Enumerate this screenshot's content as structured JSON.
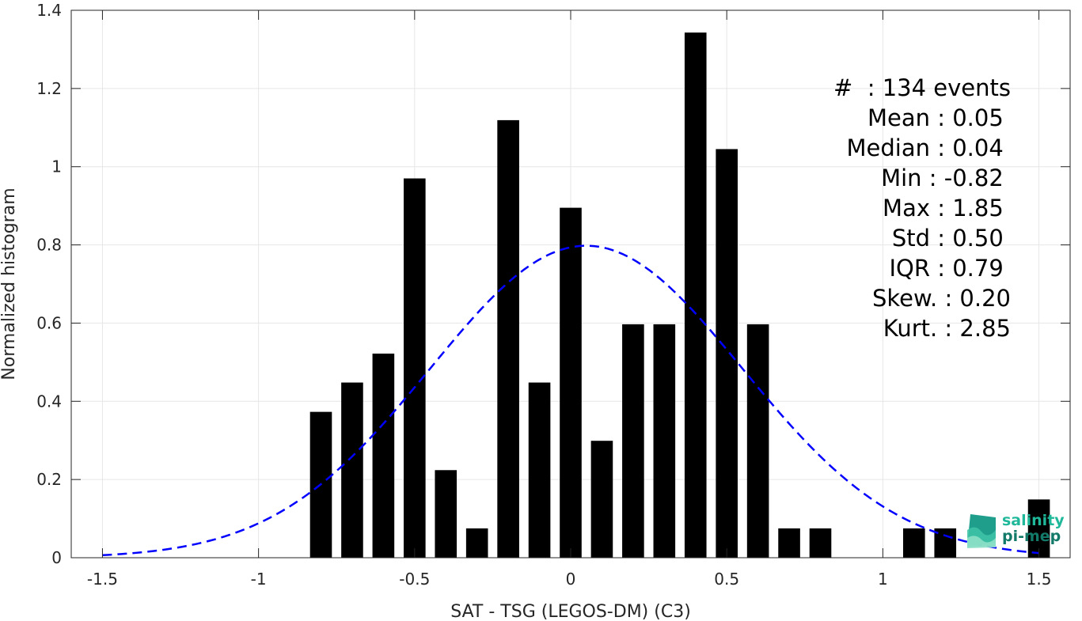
{
  "chart_data": {
    "type": "bar",
    "xlabel": "SAT - TSG (LEGOS-DM) (C3)",
    "ylabel": "Normalized histogram",
    "xlim": [
      -1.6,
      1.6
    ],
    "ylim": [
      0,
      1.4
    ],
    "xticks": [
      "-1.5",
      "-1",
      "-0.5",
      "0",
      "0.5",
      "1",
      "1.5"
    ],
    "xtick_values": [
      -1.5,
      -1,
      -0.5,
      0,
      0.5,
      1,
      1.5
    ],
    "yticks": [
      "0",
      "0.2",
      "0.4",
      "0.6",
      "0.8",
      "1",
      "1.2",
      "1.4"
    ],
    "ytick_values": [
      0,
      0.2,
      0.4,
      0.6,
      0.8,
      1,
      1.2,
      1.4
    ],
    "grid": true,
    "bar_width": 0.07,
    "bars": {
      "x": [
        -0.8,
        -0.7,
        -0.6,
        -0.5,
        -0.4,
        -0.3,
        -0.2,
        -0.1,
        0.0,
        0.1,
        0.2,
        0.3,
        0.4,
        0.5,
        0.6,
        0.7,
        0.8,
        1.1,
        1.2,
        1.5
      ],
      "values": [
        0.373,
        0.448,
        0.522,
        0.97,
        0.224,
        0.075,
        1.119,
        0.448,
        0.895,
        0.299,
        0.597,
        0.597,
        1.343,
        1.045,
        0.597,
        0.075,
        0.075,
        0.075,
        0.075,
        0.149
      ],
      "color": "#000000"
    },
    "fit_curve": {
      "type": "normal",
      "mean": 0.05,
      "std": 0.5,
      "x_range": [
        -1.5,
        1.5
      ],
      "color": "#0000ff",
      "style": "dashed"
    },
    "grid_color": "#e6e6e6",
    "axis_color": "#262626"
  },
  "stats": {
    "lines": [
      "#  : 134 events",
      "Mean : 0.05 ",
      "Median : 0.04 ",
      "Min : -0.82 ",
      "Max : 1.85 ",
      "Std : 0.50 ",
      "IQR : 0.79 ",
      "Skew. : 0.20",
      "Kurt. : 2.85"
    ]
  },
  "logo": {
    "line1": "salinity",
    "line2": "pi-mep",
    "color1": "#1fb89a",
    "color2": "#137a6a"
  }
}
